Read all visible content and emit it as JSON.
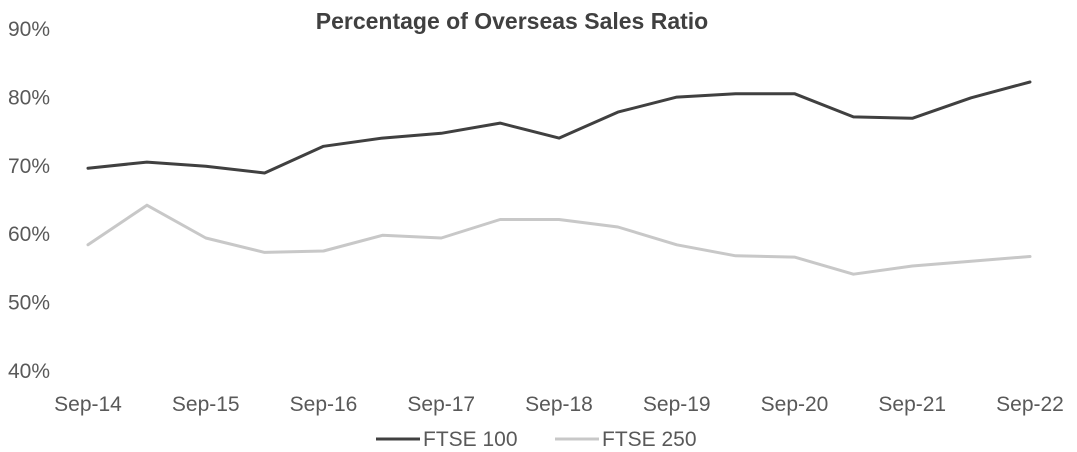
{
  "chart_data": {
    "type": "line",
    "title": "Percentage of Overseas Sales Ratio",
    "xlabel": "",
    "ylabel": "",
    "x": [
      "Sep-14",
      "Mar-15",
      "Sep-15",
      "Mar-16",
      "Sep-16",
      "Mar-17",
      "Sep-17",
      "Mar-18",
      "Sep-18",
      "Mar-19",
      "Sep-19",
      "Mar-20",
      "Sep-20",
      "Mar-21",
      "Sep-21",
      "Mar-22",
      "Sep-22"
    ],
    "x_tick_labels": [
      "Sep-14",
      "Sep-15",
      "Sep-16",
      "Sep-17",
      "Sep-18",
      "Sep-19",
      "Sep-20",
      "Sep-21",
      "Sep-22"
    ],
    "y_tick_labels": [
      "40%",
      "50%",
      "60%",
      "70%",
      "80%",
      "90%"
    ],
    "ylim": [
      40,
      90
    ],
    "y_ticks": [
      40,
      50,
      60,
      70,
      80,
      90
    ],
    "grid": false,
    "legend_position": "bottom",
    "series": [
      {
        "name": "FTSE 100",
        "color": "#404040",
        "values": [
          69.5,
          70.4,
          69.8,
          68.8,
          72.7,
          73.9,
          74.6,
          76.1,
          73.9,
          77.7,
          79.9,
          80.4,
          80.4,
          77.0,
          76.8,
          79.8,
          82.1
        ]
      },
      {
        "name": "FTSE 250",
        "color": "#c8c8c8",
        "values": [
          58.3,
          64.1,
          59.3,
          57.2,
          57.4,
          59.7,
          59.3,
          62.0,
          62.0,
          60.9,
          58.3,
          56.7,
          56.5,
          54.0,
          55.2,
          55.9,
          56.6
        ]
      }
    ]
  }
}
